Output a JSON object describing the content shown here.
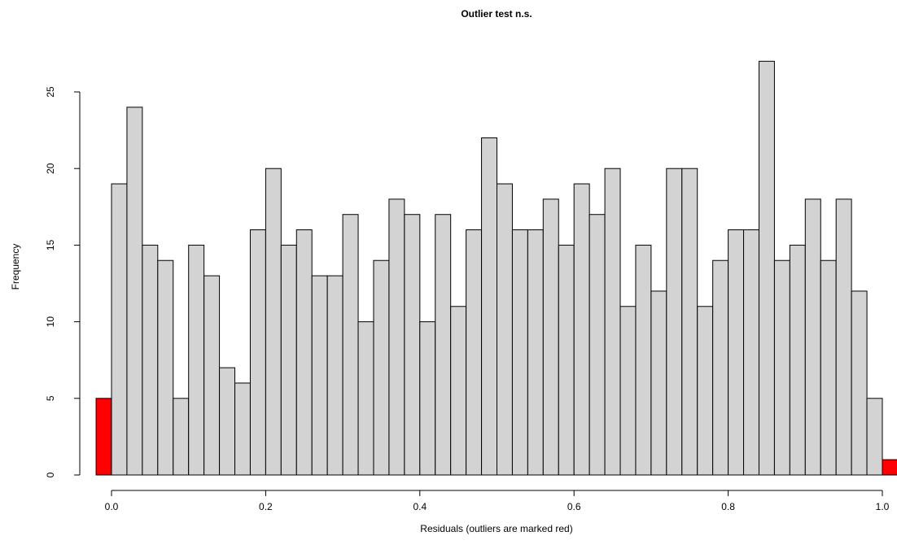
{
  "chart_data": {
    "type": "bar",
    "title": "Outlier test n.s.",
    "xlabel": "Residuals (outliers are marked red)",
    "ylabel": "Frequency",
    "xlim": [
      -0.02,
      1.02
    ],
    "ylim": [
      0,
      27
    ],
    "bin_width": 0.02,
    "bin_starts": [
      -0.02,
      0.0,
      0.02,
      0.04,
      0.06,
      0.08,
      0.1,
      0.12,
      0.14,
      0.16,
      0.18,
      0.2,
      0.22,
      0.24,
      0.26,
      0.28,
      0.3,
      0.32,
      0.34,
      0.36,
      0.38,
      0.4,
      0.42,
      0.44,
      0.46,
      0.48,
      0.5,
      0.52,
      0.54,
      0.56,
      0.58,
      0.6,
      0.62,
      0.64,
      0.66,
      0.68,
      0.7,
      0.72,
      0.74,
      0.76,
      0.78,
      0.8,
      0.82,
      0.84,
      0.86,
      0.88,
      0.9,
      0.92,
      0.94,
      0.96,
      0.98,
      1.0
    ],
    "values": [
      5,
      19,
      24,
      15,
      14,
      5,
      15,
      13,
      7,
      6,
      16,
      20,
      15,
      16,
      13,
      13,
      17,
      10,
      14,
      18,
      17,
      10,
      17,
      11,
      16,
      22,
      19,
      16,
      16,
      18,
      15,
      19,
      17,
      20,
      11,
      15,
      12,
      20,
      20,
      11,
      14,
      16,
      16,
      27,
      14,
      15,
      18,
      14,
      18,
      12,
      5,
      1
    ],
    "outlier_bins": [
      0,
      51
    ],
    "x_ticks": [
      0.0,
      0.2,
      0.4,
      0.6,
      0.8,
      1.0
    ],
    "x_tick_labels": [
      "0.0",
      "0.2",
      "0.4",
      "0.6",
      "0.8",
      "1.0"
    ],
    "y_ticks": [
      0,
      5,
      10,
      15,
      20,
      25
    ],
    "y_tick_labels": [
      "0",
      "5",
      "10",
      "15",
      "20",
      "25"
    ],
    "grid": false,
    "colors": {
      "bar": "#d3d3d3",
      "outlier": "#ff0000",
      "stroke": "#000000"
    }
  }
}
